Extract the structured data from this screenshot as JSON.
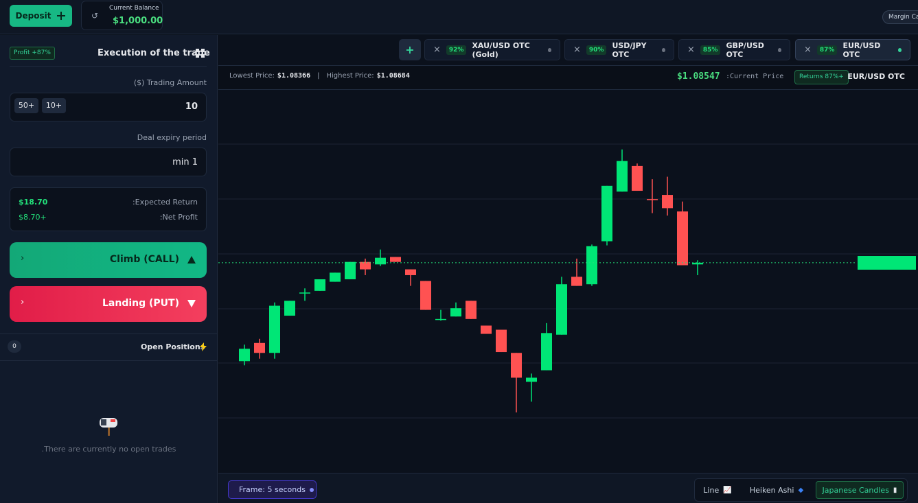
{
  "top_bar": {
    "deposit": "Deposit",
    "balance_label": "Current Balance",
    "balance": "$1,000.00",
    "margin": "Margin Cal"
  },
  "trade_panel": {
    "profit_badge": "Profit +87%",
    "title": "Execution of the trade",
    "amount_label": "($) Trading Amount",
    "quick_amounts": [
      "50+",
      "10+"
    ],
    "amount": "10",
    "expiry_label": "Deal expiry period",
    "expiry": "min 1",
    "expected_return": "$18.70",
    "expected_return_label": ":Expected Return",
    "net_profit": "$8.70+",
    "net_profit_label": ":Net Profit",
    "call_button": "Climb (CALL)",
    "put_button": "Landing (PUT)"
  },
  "positions": {
    "count": 0,
    "title": "Open Positions",
    "empty": ".There are currently no open trades"
  },
  "tabs": [
    {
      "payout": "92%",
      "name": "XAU/USD OTC (Gold)"
    },
    {
      "payout": "90%",
      "name": "USD/JPY OTC"
    },
    {
      "payout": "85%",
      "name": "GBP/USD OTC"
    },
    {
      "payout": "87%",
      "name": "EUR/USD OTC"
    }
  ],
  "price_bar": {
    "lowest_label": "Lowest Price:",
    "lowest": "$1.08366",
    "highest_label": "Highest Price:",
    "highest": "$1.08684",
    "current": "$1.08547",
    "current_label": ":Current Price",
    "returns": "Returns 87%+",
    "asset": "EUR/USD OTC"
  },
  "chart_data": {
    "type": "candlestick",
    "ylim": [
      1.08293,
      1.08756
    ],
    "up_color": "#00e676",
    "down_color": "#ff5252",
    "current_price": 1.08547,
    "open": [
      1.08428,
      1.0845,
      1.08438,
      1.08483,
      1.0851,
      1.08513,
      1.08524,
      1.08527,
      1.08548,
      1.08545,
      1.08554,
      1.08539,
      1.08525,
      1.08478,
      1.08482,
      1.08501,
      1.08471,
      1.08466,
      1.08438,
      1.08403,
      1.08417,
      1.0846,
      1.0853,
      1.08521,
      1.08573,
      1.08633,
      1.08664,
      1.08624,
      1.08629,
      1.08609,
      1.08545
    ],
    "high": [
      1.08448,
      1.08455,
      1.08499,
      1.08501,
      1.08516,
      1.08527,
      1.08535,
      1.08548,
      1.08552,
      1.08563,
      1.08554,
      1.08539,
      1.08525,
      1.0849,
      1.08499,
      1.08501,
      1.08471,
      1.08466,
      1.08438,
      1.08413,
      1.08474,
      1.0853,
      1.08552,
      1.08569,
      1.0864,
      1.08684,
      1.08667,
      1.08648,
      1.08651,
      1.08621,
      1.0855
    ],
    "low": [
      1.08423,
      1.08431,
      1.08431,
      1.08483,
      1.08501,
      1.08513,
      1.08524,
      1.08527,
      1.08532,
      1.08543,
      1.08548,
      1.08519,
      1.0849,
      1.08477,
      1.08482,
      1.08479,
      1.08461,
      1.08439,
      1.08366,
      1.08379,
      1.08417,
      1.0846,
      1.08519,
      1.08519,
      1.08568,
      1.08633,
      1.08634,
      1.08607,
      1.08604,
      1.08544,
      1.08532
    ],
    "close": [
      1.08443,
      1.08438,
      1.08495,
      1.08501,
      1.08511,
      1.08527,
      1.08535,
      1.08548,
      1.08539,
      1.08553,
      1.08548,
      1.08532,
      1.0849,
      1.08479,
      1.08492,
      1.08479,
      1.08461,
      1.08439,
      1.08408,
      1.08408,
      1.08462,
      1.08521,
      1.08519,
      1.08567,
      1.0864,
      1.0867,
      1.08634,
      1.08623,
      1.08613,
      1.08544,
      1.08547
    ]
  },
  "bottom_bar": {
    "frame": "Frame: 5 seconds",
    "chart_types": [
      "Line",
      "Heiken Ashi",
      "Japanese Candles"
    ]
  }
}
